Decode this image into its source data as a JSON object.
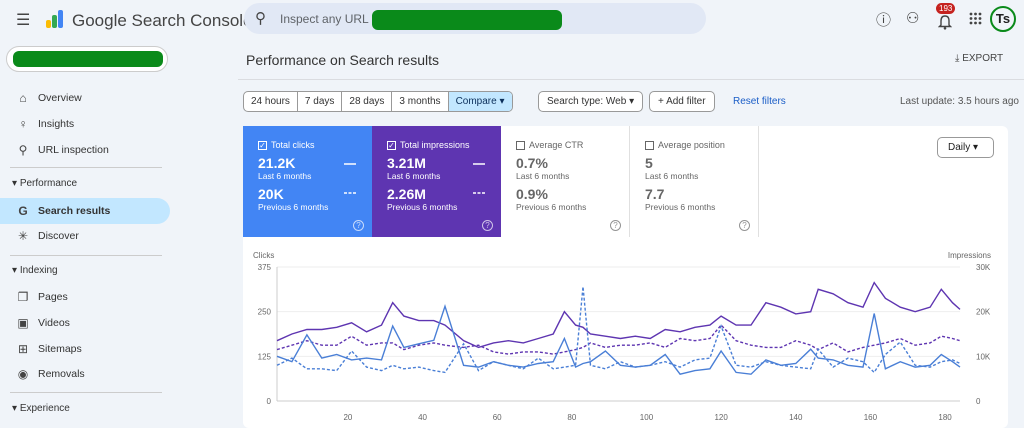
{
  "header": {
    "app_title": "Google Search Console",
    "search_placeholder": "Inspect any URL in",
    "notification_count": "193",
    "avatar_text": "Ts",
    "icons": [
      "menu-icon",
      "search-icon",
      "help-icon",
      "manage-users-icon",
      "notifications-icon",
      "apps-icon"
    ]
  },
  "sidebar": {
    "items": [
      {
        "label": "Overview",
        "icon": "home-icon",
        "glyph": "⌂"
      },
      {
        "label": "Insights",
        "icon": "lightbulb-icon",
        "glyph": "♀"
      },
      {
        "label": "URL inspection",
        "icon": "search-icon",
        "glyph": "⚲"
      },
      {
        "label": "Search results",
        "icon": "google-g-icon",
        "glyph": "G",
        "active": true
      },
      {
        "label": "Discover",
        "icon": "asterisk-icon",
        "glyph": "✳"
      },
      {
        "label": "Pages",
        "icon": "pages-icon",
        "glyph": "❐"
      },
      {
        "label": "Videos",
        "icon": "videos-icon",
        "glyph": "▣"
      },
      {
        "label": "Sitemaps",
        "icon": "sitemap-icon",
        "glyph": "⊞"
      },
      {
        "label": "Removals",
        "icon": "eye-off-icon",
        "glyph": "◉"
      }
    ],
    "sections": [
      "Performance",
      "Indexing",
      "Experience"
    ]
  },
  "main": {
    "title": "Performance on Search results",
    "export": "EXPORT",
    "date_ranges": [
      "24 hours",
      "7 days",
      "28 days",
      "3 months",
      "Compare ▾"
    ],
    "search_type": "Search type: Web ▾",
    "add_filter": "+ Add filter",
    "reset_filters": "Reset filters",
    "last_update": "Last update: 3.5 hours ago",
    "granularity": "Daily ▾",
    "metrics": [
      {
        "label": "Total clicks",
        "checked": true,
        "value": "21.2K",
        "period": "Last 6 months",
        "prev_value": "20K",
        "prev_period": "Previous 6 months",
        "color": "#4285f4"
      },
      {
        "label": "Total impressions",
        "checked": true,
        "value": "3.21M",
        "period": "Last 6 months",
        "prev_value": "2.26M",
        "prev_period": "Previous 6 months",
        "color": "#5e35b1"
      },
      {
        "label": "Average CTR",
        "checked": false,
        "value": "0.7%",
        "period": "Last 6 months",
        "prev_value": "0.9%",
        "prev_period": "Previous 6 months"
      },
      {
        "label": "Average position",
        "checked": false,
        "value": "5",
        "period": "Last 6 months",
        "prev_value": "7.7",
        "prev_period": "Previous 6 months"
      }
    ]
  },
  "chart_data": {
    "type": "line",
    "y_left_label": "Clicks",
    "y_right_label": "Impressions",
    "y_left_range": [
      0,
      375
    ],
    "y_right_range": [
      0,
      30000
    ],
    "y_left_ticks": [
      "0",
      "125",
      "250",
      "375"
    ],
    "y_right_ticks": [
      "0",
      "10K",
      "20K",
      "30K"
    ],
    "x_ticks": [
      "20",
      "40",
      "60",
      "80",
      "100",
      "120",
      "140",
      "160",
      "180"
    ],
    "x_range": [
      1,
      184
    ],
    "grid": true,
    "x": [
      1,
      5,
      9,
      13,
      17,
      21,
      25,
      29,
      32,
      35,
      39,
      43,
      46,
      51,
      55,
      59,
      63,
      67,
      71,
      75,
      78,
      81,
      83,
      85,
      89,
      93,
      97,
      101,
      105,
      109,
      113,
      117,
      120,
      124,
      128,
      132,
      136,
      140,
      144,
      146,
      150,
      154,
      158,
      161,
      164,
      168,
      172,
      176,
      179,
      182,
      184
    ],
    "series": [
      {
        "axis": "right",
        "style": "solid",
        "color": "#5e35b1",
        "values": [
          13500,
          15000,
          16000,
          16000,
          16500,
          17500,
          15500,
          17000,
          22000,
          19000,
          18000,
          18000,
          17000,
          13500,
          12000,
          13000,
          13500,
          13000,
          14000,
          15000,
          20000,
          17000,
          16500,
          15000,
          14500,
          14000,
          14500,
          14000,
          16000,
          15500,
          16500,
          17000,
          19000,
          17000,
          17000,
          22000,
          21000,
          19500,
          20000,
          25000,
          24000,
          22000,
          21000,
          26500,
          23000,
          21000,
          20000,
          21000,
          25000,
          22000,
          20500
        ]
      },
      {
        "axis": "right",
        "style": "dashed",
        "color": "#5e35b1",
        "values": [
          11500,
          12500,
          13500,
          12500,
          12500,
          14500,
          12500,
          13000,
          13000,
          11500,
          12500,
          13000,
          12500,
          12000,
          12500,
          11000,
          10500,
          11000,
          11000,
          10500,
          11000,
          11500,
          12000,
          13000,
          12000,
          12500,
          12500,
          13000,
          12000,
          14000,
          13500,
          14000,
          17000,
          13500,
          12500,
          12000,
          12000,
          13500,
          12500,
          11500,
          13000,
          11000,
          12000,
          12500,
          13000,
          14000,
          12500,
          13000,
          14500,
          14000,
          13500
        ]
      },
      {
        "axis": "left",
        "style": "solid",
        "color": "#4a7fd6",
        "values": [
          125,
          110,
          185,
          120,
          130,
          115,
          120,
          115,
          210,
          150,
          160,
          170,
          265,
          100,
          95,
          110,
          100,
          95,
          105,
          110,
          175,
          95,
          105,
          110,
          140,
          100,
          95,
          100,
          130,
          75,
          85,
          90,
          140,
          80,
          75,
          115,
          100,
          105,
          145,
          120,
          115,
          100,
          95,
          245,
          90,
          110,
          95,
          100,
          130,
          110,
          95
        ]
      },
      {
        "axis": "left",
        "style": "dashed",
        "color": "#4a7fd6",
        "values": [
          100,
          120,
          90,
          90,
          85,
          140,
          95,
          85,
          100,
          90,
          95,
          85,
          80,
          160,
          85,
          110,
          100,
          90,
          120,
          90,
          95,
          100,
          320,
          100,
          90,
          110,
          95,
          100,
          110,
          95,
          115,
          120,
          210,
          100,
          95,
          110,
          100,
          95,
          90,
          145,
          95,
          120,
          110,
          80,
          130,
          165,
          100,
          95,
          110,
          115,
          105
        ]
      }
    ]
  }
}
